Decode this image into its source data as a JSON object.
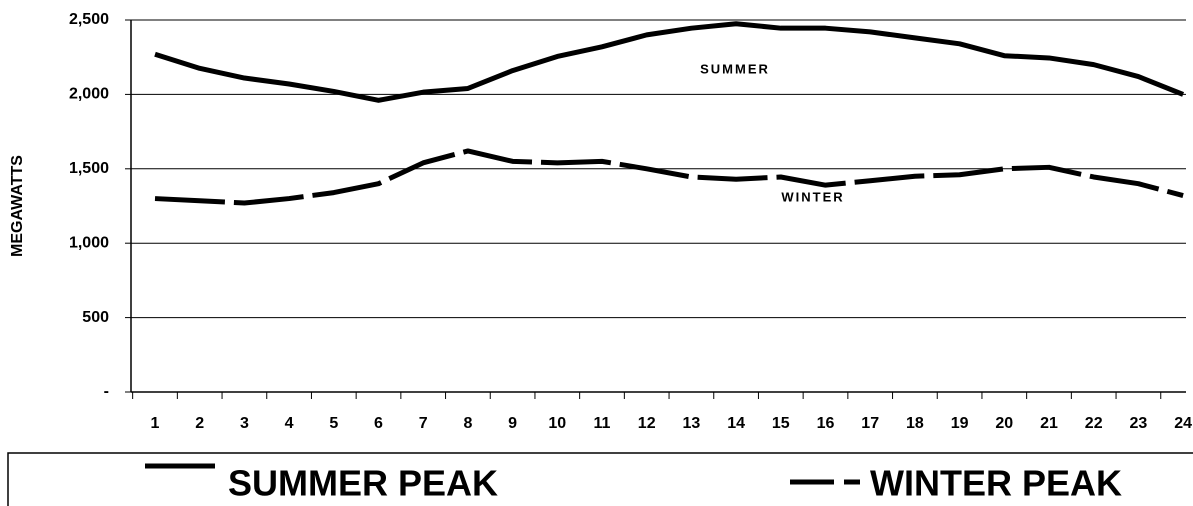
{
  "chart_data": {
    "type": "line",
    "y_label": "MEGAWATTS",
    "categories": [
      "1",
      "2",
      "3",
      "4",
      "5",
      "6",
      "7",
      "8",
      "9",
      "10",
      "11",
      "12",
      "13",
      "14",
      "15",
      "16",
      "17",
      "18",
      "19",
      "20",
      "21",
      "22",
      "23",
      "24"
    ],
    "series": [
      {
        "name": "SUMMER PEAK",
        "color": "#000000",
        "dash": false,
        "values": [
          2270,
          2175,
          2110,
          2070,
          2020,
          1960,
          2015,
          2040,
          2160,
          2255,
          2320,
          2400,
          2445,
          2475,
          2445,
          2445,
          2420,
          2380,
          2340,
          2260,
          2245,
          2200,
          2120,
          2000
        ]
      },
      {
        "name": "WINTER PEAK",
        "color": "#000000",
        "dash": true,
        "values": [
          1300,
          1285,
          1270,
          1300,
          1340,
          1400,
          1540,
          1620,
          1550,
          1540,
          1550,
          1500,
          1445,
          1430,
          1445,
          1390,
          1420,
          1450,
          1460,
          1500,
          1510,
          1445,
          1400,
          1320
        ]
      }
    ],
    "annotations": [
      "SUMMER",
      "WINTER"
    ],
    "ylim": [
      0,
      2500
    ],
    "yticks": [
      {
        "value": 0,
        "label": "-"
      },
      {
        "value": 500,
        "label": "500"
      },
      {
        "value": 1000,
        "label": "1,000"
      },
      {
        "value": 1500,
        "label": "1,500"
      },
      {
        "value": 2000,
        "label": "2,000"
      },
      {
        "value": 2500,
        "label": "2,500"
      }
    ],
    "grid": true
  }
}
